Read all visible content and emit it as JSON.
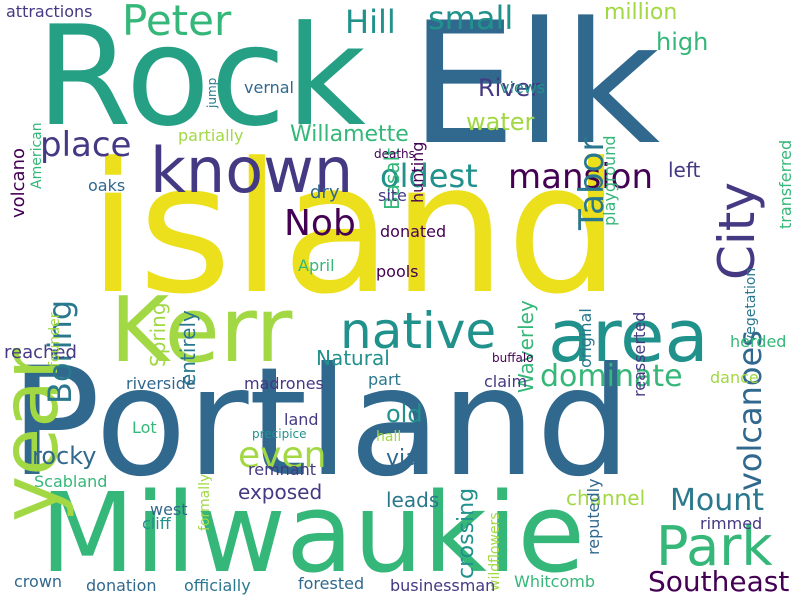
{
  "words": {
    "island": "island",
    "elk": "Elk",
    "rock": "Rock",
    "portland": "Portland",
    "milwaukie": "Milwaukie",
    "kerr": "Kerr",
    "year": "year",
    "known": "known",
    "area": "area",
    "native": "native",
    "city": "City",
    "park": "Park",
    "peter": "Peter",
    "hill": "Hill",
    "small": "small",
    "mansion": "mansion",
    "oldest": "oldest",
    "place": "place",
    "nob": "Nob",
    "boring": "Boring",
    "volcanoes": "volcanoes",
    "dominate": "dominate",
    "mount": "Mount",
    "southeast": "Southeast",
    "even": "even",
    "tabor": "Tabor",
    "willamette": "Willamette",
    "water": "water",
    "river": "River",
    "high": "high",
    "million": "million",
    "basalt": "Basalt",
    "crossing": "crossing",
    "waverley": "Waverley",
    "spring": "Spring",
    "entirely": "entirely",
    "natural": "Natural",
    "old": "old",
    "rocky": "rocky",
    "via": "via",
    "exposed": "exposed",
    "leads": "leads",
    "channel": "channel",
    "left": "left",
    "reached": "reached",
    "pools": "pools",
    "donated": "donated",
    "site": "site",
    "dry": "dry",
    "oaks": "oaks",
    "april": "April",
    "vernal": "vernal",
    "views": "views",
    "partially": "partially",
    "attractions": "attractions",
    "jump": "jump",
    "volcano": "volcano",
    "american": "American",
    "hunting": "hunting",
    "playground": "playground",
    "transferred": "transferred",
    "deaths": "deaths",
    "vegetation": "vegetation",
    "reasserted": "reasserted",
    "original": "original",
    "herded": "herded",
    "buffalo": "buffalo",
    "dance": "dance",
    "claim": "claim",
    "part": "part",
    "riverside": "riverside",
    "madrones": "madrones",
    "founder": "founder",
    "land": "land",
    "precipice": "precipice",
    "lot": "Lot",
    "hall": "hall",
    "remnant": "remnant",
    "reputedly": "reputedly",
    "wildflowers": "wildflowers",
    "formally": "formally",
    "scabland": "Scabland",
    "west": "west",
    "cliff": "cliff",
    "rimmed": "rimmed",
    "crown": "crown",
    "donation": "donation",
    "officially": "officially",
    "forested": "forested",
    "businessman": "businessman",
    "whitcomb": "Whitcomb"
  },
  "palette": {
    "background": "#ffffff",
    "yellow": "#ecdf1c",
    "lime": "#a2d844",
    "green": "#35b779",
    "teal": "#21918c",
    "steel": "#31688e",
    "indigo": "#443983",
    "purple": "#440154"
  }
}
